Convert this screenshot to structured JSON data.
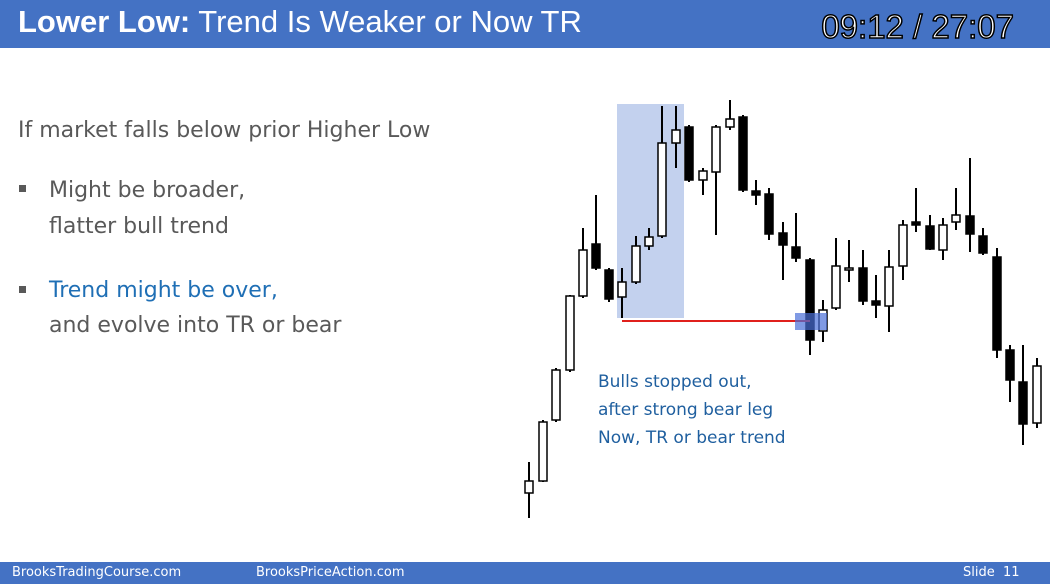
{
  "header": {
    "title_bold": "Lower Low:",
    "title_rest": "Trend Is Weaker or Now TR",
    "timer": "09:12 / 27:07"
  },
  "body": {
    "intro": "If market falls below prior Higher Low",
    "bullets": [
      {
        "line1": "Might be broader,",
        "line2": "flatter bull trend"
      },
      {
        "line1": "Trend might be over,",
        "line2": "and evolve into TR or bear"
      }
    ]
  },
  "annotation": [
    "Bulls stopped out,",
    "after strong bear leg",
    "Now, TR or bear trend"
  ],
  "footer": {
    "left": "BrooksTradingCourse.com",
    "middle": "BrooksPriceAction.com",
    "slide": "Slide  11"
  }
}
